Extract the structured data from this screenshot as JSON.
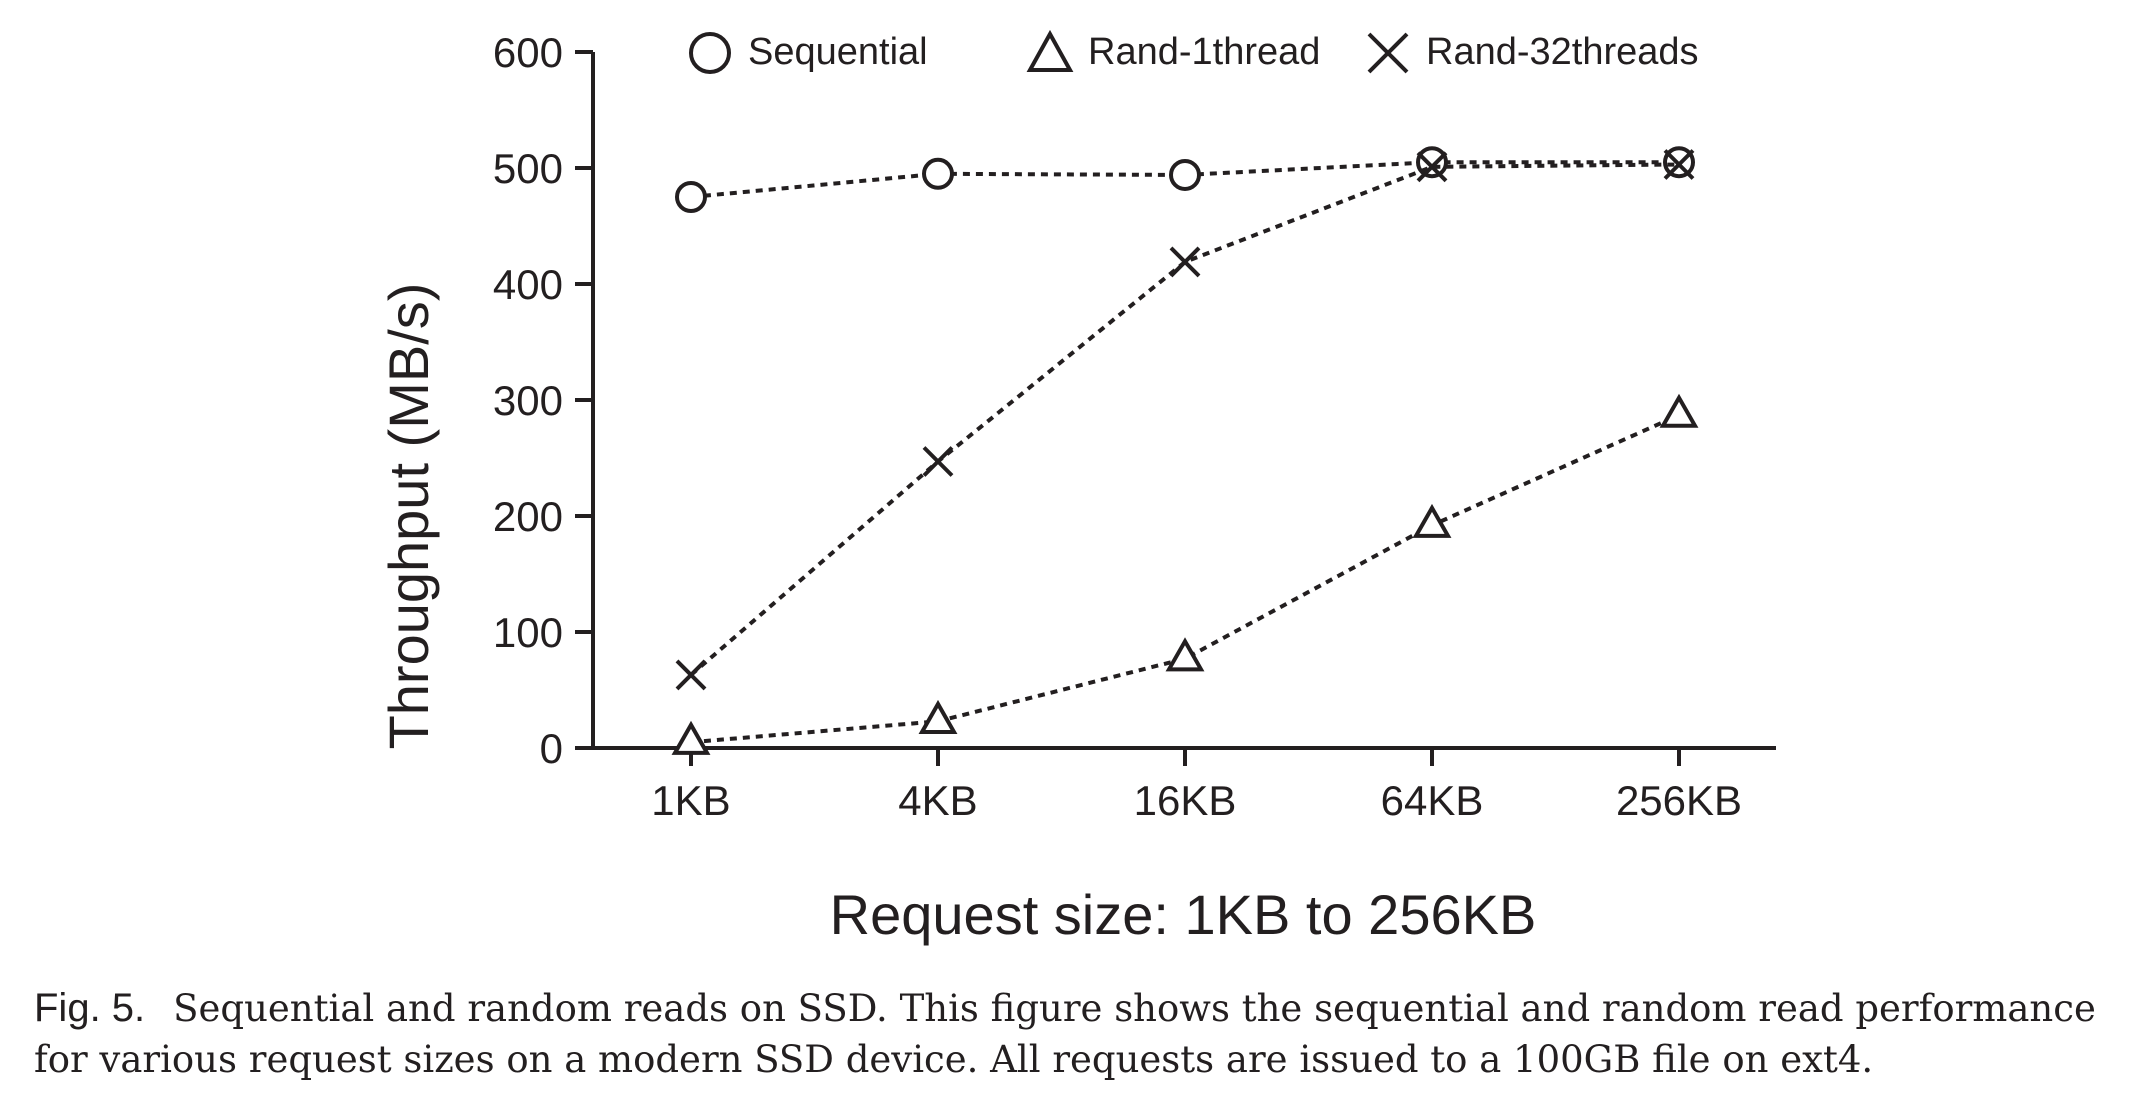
{
  "chart_data": {
    "type": "line",
    "title": "",
    "xlabel": "Request size: 1KB to 256KB",
    "ylabel": "Throughput (MB/s)",
    "categories": [
      "1KB",
      "4KB",
      "16KB",
      "64KB",
      "256KB"
    ],
    "ylim": [
      0,
      600
    ],
    "yticks": [
      0,
      100,
      200,
      300,
      400,
      500,
      600
    ],
    "grid": false,
    "legend_position": "top",
    "line_style": "dotted",
    "series": [
      {
        "name": "Sequential",
        "marker": "circle",
        "values": [
          475,
          495,
          494,
          505,
          505
        ]
      },
      {
        "name": "Rand-1thread",
        "marker": "triangle",
        "values": [
          5,
          23,
          77,
          192,
          287
        ]
      },
      {
        "name": "Rand-32threads",
        "marker": "x",
        "values": [
          63,
          247,
          419,
          501,
          503
        ]
      }
    ]
  },
  "caption": {
    "label": "Fig. 5.",
    "text": "Sequential and random reads on SSD. This figure shows the sequential and random read performance for various request sizes on a modern SSD device. All requests are issued to a 100GB file on ext4."
  }
}
